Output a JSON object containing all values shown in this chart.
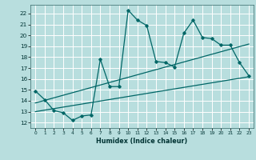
{
  "xlabel": "Humidex (Indice chaleur)",
  "background_color": "#b8dede",
  "grid_color": "#ffffff",
  "line_color": "#006666",
  "xlim": [
    -0.5,
    23.5
  ],
  "ylim": [
    11.5,
    22.8
  ],
  "yticks": [
    12,
    13,
    14,
    15,
    16,
    17,
    18,
    19,
    20,
    21,
    22
  ],
  "xticks": [
    0,
    1,
    2,
    3,
    4,
    5,
    6,
    7,
    8,
    9,
    10,
    11,
    12,
    13,
    14,
    15,
    16,
    17,
    18,
    19,
    20,
    21,
    22,
    23
  ],
  "main_x": [
    0,
    1,
    2,
    3,
    4,
    5,
    6,
    7,
    8,
    9,
    10,
    11,
    12,
    13,
    14,
    15,
    16,
    17,
    18,
    19,
    20,
    21,
    22,
    23
  ],
  "main_y": [
    14.9,
    14.1,
    13.1,
    12.9,
    12.2,
    12.6,
    12.7,
    17.8,
    15.3,
    15.3,
    22.3,
    21.4,
    20.9,
    17.6,
    17.5,
    17.1,
    20.2,
    21.4,
    19.8,
    19.7,
    19.1,
    19.1,
    17.5,
    16.3
  ],
  "trend1_x": [
    0,
    23
  ],
  "trend1_y": [
    13.0,
    16.2
  ],
  "trend2_x": [
    0,
    23
  ],
  "trend2_y": [
    13.8,
    19.2
  ]
}
